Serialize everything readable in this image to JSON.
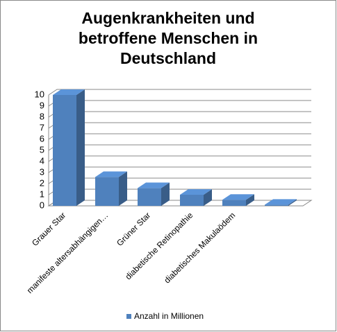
{
  "chart_data": {
    "type": "bar3d",
    "title": "Augenkrankheiten und betroffene Menschen in Deutschland",
    "categories": [
      "Grauer Star",
      "manifeste altersabhängigen…",
      "Grüner Star",
      "diabetische Retinopathie",
      "diabetisches Makulaödem",
      null
    ],
    "series": [
      {
        "name": "Anzahl in Millionen",
        "color": "#4f81bd",
        "values": [
          10,
          2.6,
          1.6,
          1,
          0.55,
          0.1
        ]
      }
    ],
    "ylim": [
      0,
      10
    ],
    "yticks": [
      0,
      1,
      2,
      3,
      4,
      5,
      6,
      7,
      8,
      9,
      10
    ],
    "grid": true,
    "legend": "bottom"
  }
}
